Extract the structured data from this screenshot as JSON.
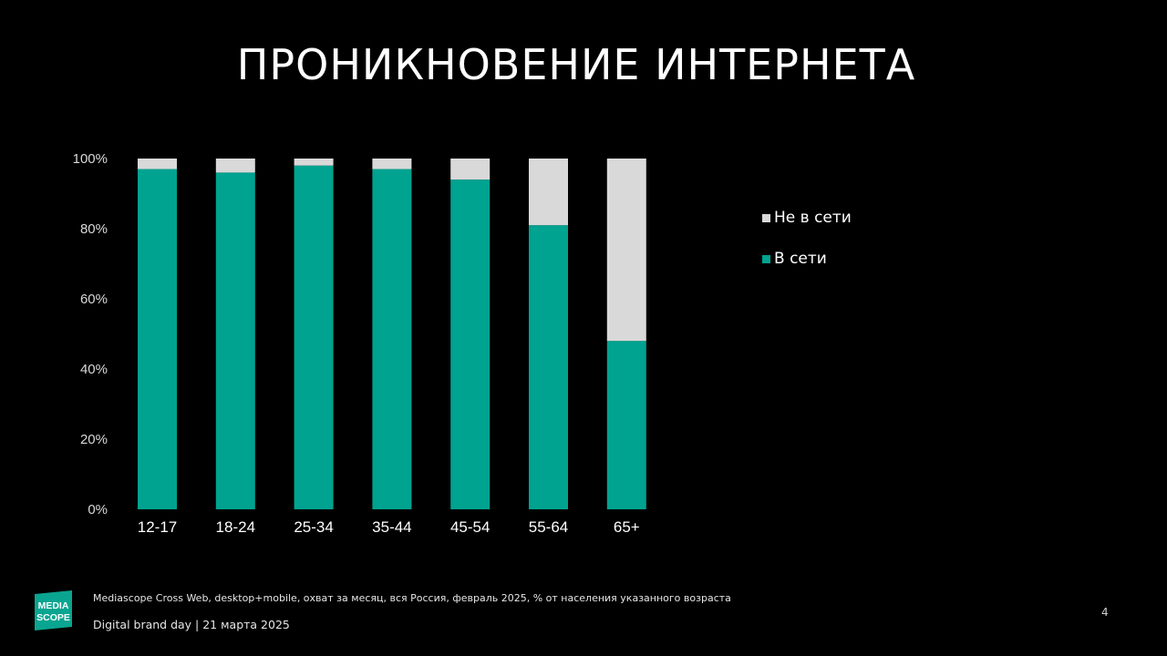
{
  "slide": {
    "title": "ПРОНИКНОВЕНИЕ ИНТЕРНЕТА",
    "footnote": "Mediascope Cross  Web, desktop+mobile, охват за месяц, вся Россия, февраль 2025, % от населения указанного возраста",
    "event": "Digital brand day |  21 марта 2025",
    "page_number": "4",
    "logo_text": [
      "MEDIA",
      "SCOPE"
    ],
    "logo_icon": "mediascope-logo",
    "brand_color": "#0aa590"
  },
  "chart_data": {
    "type": "bar",
    "stacked": true,
    "categories": [
      "12-17",
      "18-24",
      "25-34",
      "35-44",
      "45-54",
      "55-64",
      "65+"
    ],
    "series": [
      {
        "name": "В сети",
        "color": "#00a390",
        "values": [
          97,
          96,
          98,
          97,
          94,
          81,
          48
        ]
      },
      {
        "name": "Не в сети",
        "color": "#d9d9d9",
        "values": [
          3,
          4,
          2,
          3,
          6,
          19,
          52
        ]
      }
    ],
    "y_ticks": [
      "0%",
      "20%",
      "40%",
      "60%",
      "80%",
      "100%"
    ],
    "ylim": [
      0,
      100
    ],
    "grid": false,
    "legend_position": "right"
  }
}
